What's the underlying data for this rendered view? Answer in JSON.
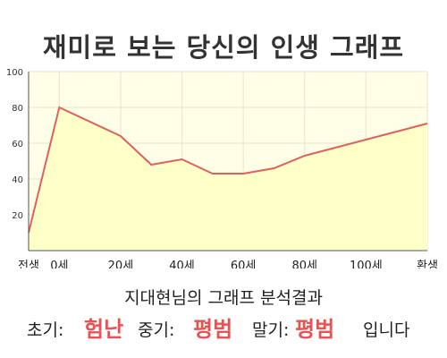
{
  "title": "재미로 보는 당신의 인생 그래프",
  "chart_data": {
    "type": "area",
    "title": "재미로 보는 당신의 인생 그래프",
    "x": [
      -10,
      0,
      20,
      30,
      40,
      50,
      60,
      70,
      80,
      100,
      120
    ],
    "values": [
      10,
      80,
      64,
      48,
      51,
      43,
      43,
      46,
      53,
      62,
      71
    ],
    "ylim": [
      0,
      100
    ],
    "xlim": [
      -10,
      120
    ],
    "y_ticks": [
      20,
      40,
      60,
      80,
      100
    ],
    "x_ticks": [
      {
        "x": -10,
        "label": "전생"
      },
      {
        "x": 0,
        "label": "0세"
      },
      {
        "x": 20,
        "label": "20세"
      },
      {
        "x": 40,
        "label": "40세"
      },
      {
        "x": 60,
        "label": "60세"
      },
      {
        "x": 80,
        "label": "80세"
      },
      {
        "x": 100,
        "label": "100세"
      },
      {
        "x": 120,
        "label": "환생"
      }
    ],
    "grid": true,
    "colors": {
      "line": "#e06060",
      "fill": "#ffffc8",
      "plot_bg": "#ffffe8",
      "grid": "#e6e6c8"
    }
  },
  "subtitle": "지대현님의 그래프 분석결과",
  "result": {
    "early_label": "초기:",
    "early_value": "험난",
    "middle_label": "중기:",
    "middle_value": "평범",
    "late_label": "말기:",
    "late_value": "평범",
    "ending": "입니다"
  }
}
